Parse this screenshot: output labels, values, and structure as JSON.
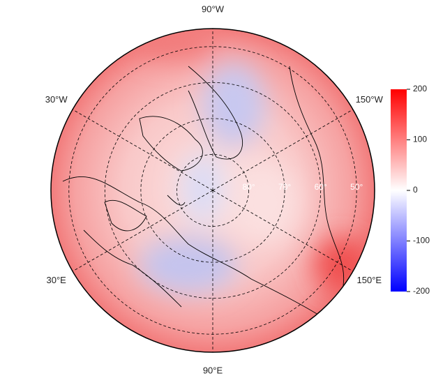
{
  "chart_data": {
    "type": "polar-map",
    "latlim": [
      45,
      90
    ],
    "latitudes": [
      {
        "value": 80,
        "label": "80°"
      },
      {
        "value": 70,
        "label": "70°"
      },
      {
        "value": 60,
        "label": "60°"
      },
      {
        "value": 50,
        "label": "50°"
      }
    ],
    "longitudes": [
      {
        "value": -90,
        "label": "90°W"
      },
      {
        "value": -30,
        "label": "30°W"
      },
      {
        "value": -150,
        "label": "150°W"
      },
      {
        "value": 30,
        "label": "30°E"
      },
      {
        "value": 150,
        "label": "150°E"
      },
      {
        "value": 90,
        "label": "90°E"
      }
    ],
    "colorbar": {
      "lim": [
        -200,
        200
      ],
      "ticks": [
        200,
        100,
        0,
        -100,
        -200
      ],
      "colors": [
        "#0000ff",
        "#ffffff",
        "#ff0000"
      ]
    }
  }
}
